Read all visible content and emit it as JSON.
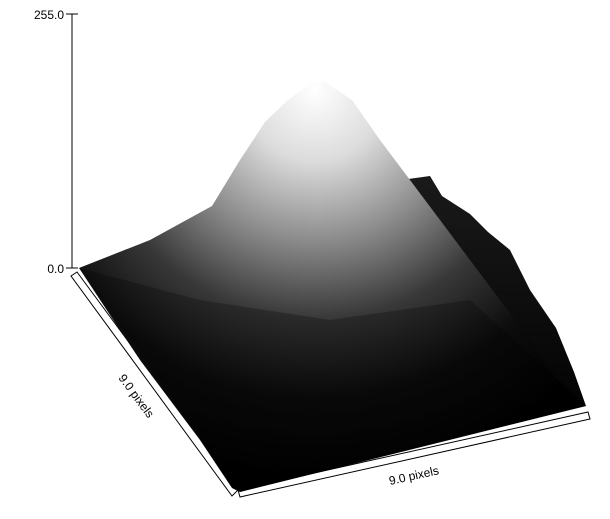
{
  "chart_data": {
    "type": "surface",
    "z_range": [
      0.0,
      255.0
    ],
    "z_tick_labels": [
      "0.0",
      "255.0"
    ],
    "x_axis_label": "9.0 pixels",
    "y_axis_label": "9.0 pixels",
    "grid": false,
    "colormap": "grayscale",
    "surface_colors": {
      "low": "#000000",
      "high": "#ffffff"
    }
  }
}
